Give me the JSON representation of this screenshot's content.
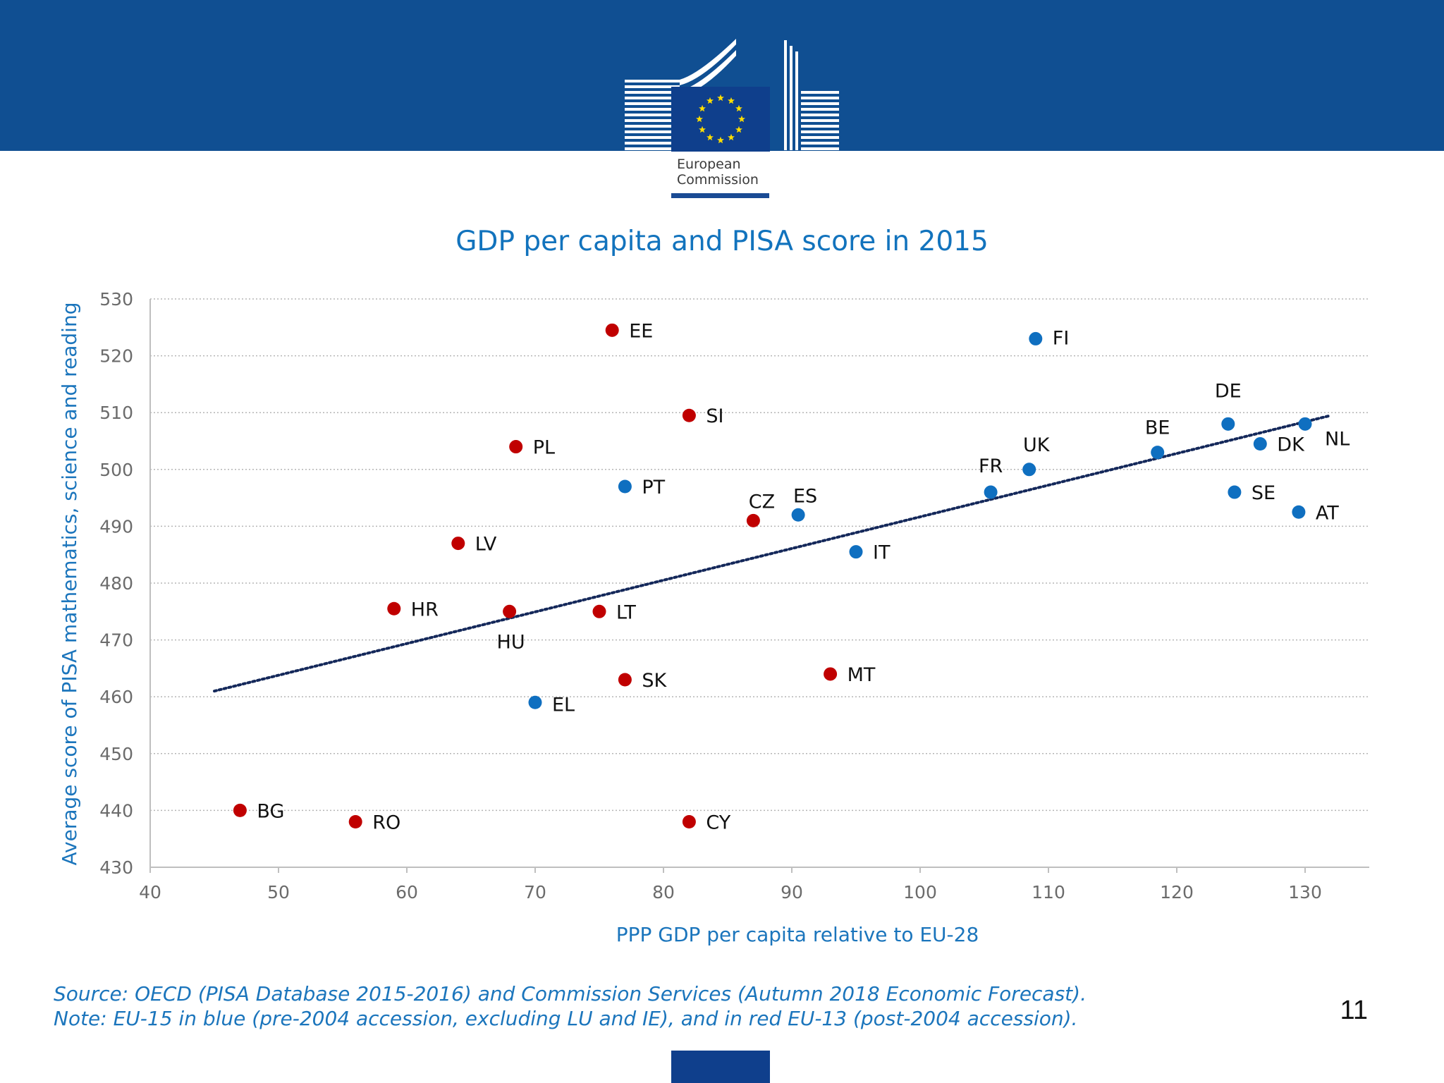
{
  "header": {
    "logo_line1": "European",
    "logo_line2": "Commission",
    "brand_colors": {
      "band": "#104f92",
      "flag": "#0f3f8c",
      "stars": "#ffde00"
    }
  },
  "footer": {
    "source_line": "Source: OECD (PISA Database 2015-2016) and Commission Services (Autumn 2018 Economic Forecast).",
    "note_line": "Note: EU-15 in blue (pre-2004 accession, excluding LU and IE), and in red EU-13 (post-2004 accession).",
    "page_number": "11"
  },
  "chart_data": {
    "type": "scatter",
    "title": "GDP per capita and PISA score in 2015",
    "xlabel": "PPP GDP per capita relative to EU-28",
    "ylabel": "Average score of PISA mathematics, science and reading",
    "xlim": [
      40,
      135
    ],
    "ylim": [
      430,
      530
    ],
    "xticks": [
      40,
      50,
      60,
      70,
      80,
      90,
      100,
      110,
      120,
      130
    ],
    "yticks": [
      430,
      440,
      450,
      460,
      470,
      480,
      490,
      500,
      510,
      520,
      530
    ],
    "grid": "horizontal dotted",
    "colors": {
      "EU-15": "#0f6fc0",
      "EU-13": "#c00000",
      "trendline": "#14285a",
      "text_blue": "#1b75bc"
    },
    "trendline": {
      "x": [
        45,
        132
      ],
      "y": [
        461,
        509.5
      ]
    },
    "series": [
      {
        "name": "EU-15",
        "points": [
          {
            "label": "FI",
            "x": 109,
            "y": 523
          },
          {
            "label": "DE",
            "x": 124,
            "y": 508
          },
          {
            "label": "NL",
            "x": 130,
            "y": 508
          },
          {
            "label": "BE",
            "x": 118.5,
            "y": 503
          },
          {
            "label": "DK",
            "x": 126.5,
            "y": 504.5
          },
          {
            "label": "UK",
            "x": 108.5,
            "y": 500
          },
          {
            "label": "FR",
            "x": 105.5,
            "y": 496
          },
          {
            "label": "SE",
            "x": 124.5,
            "y": 496
          },
          {
            "label": "AT",
            "x": 129.5,
            "y": 492.5
          },
          {
            "label": "PT",
            "x": 77,
            "y": 497
          },
          {
            "label": "ES",
            "x": 90.5,
            "y": 492
          },
          {
            "label": "IT",
            "x": 95,
            "y": 485.5
          },
          {
            "label": "EL",
            "x": 70,
            "y": 459
          }
        ]
      },
      {
        "name": "EU-13",
        "points": [
          {
            "label": "EE",
            "x": 76,
            "y": 524.5
          },
          {
            "label": "SI",
            "x": 82,
            "y": 509.5
          },
          {
            "label": "PL",
            "x": 68.5,
            "y": 504
          },
          {
            "label": "CZ",
            "x": 87,
            "y": 491
          },
          {
            "label": "LV",
            "x": 64,
            "y": 487
          },
          {
            "label": "HR",
            "x": 59,
            "y": 475.5
          },
          {
            "label": "HU",
            "x": 68,
            "y": 475
          },
          {
            "label": "LT",
            "x": 75,
            "y": 475
          },
          {
            "label": "SK",
            "x": 77,
            "y": 463
          },
          {
            "label": "MT",
            "x": 93,
            "y": 464
          },
          {
            "label": "BG",
            "x": 47,
            "y": 440
          },
          {
            "label": "RO",
            "x": 56,
            "y": 438
          },
          {
            "label": "CY",
            "x": 82,
            "y": 438
          }
        ]
      }
    ]
  }
}
